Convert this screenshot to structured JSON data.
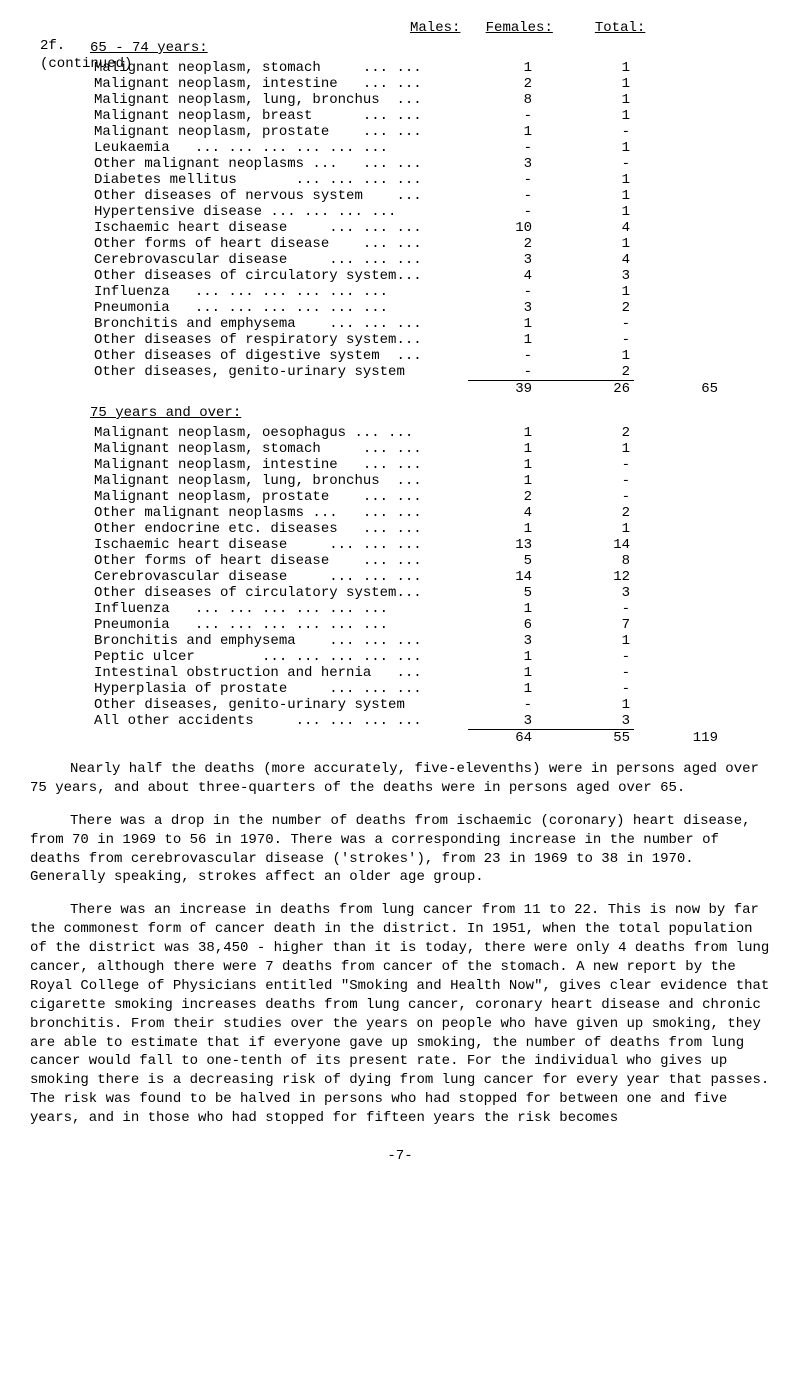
{
  "header": {
    "males": "Males:",
    "females": "Females:",
    "total": "Total:"
  },
  "margin": {
    "line1": "2f.",
    "line2": "(continued)"
  },
  "section1": {
    "title": "65 - 74 years:",
    "rows": [
      {
        "label": "Malignant neoplasm, stomach     ... ...",
        "m": "1",
        "f": "1"
      },
      {
        "label": "Malignant neoplasm, intestine   ... ...",
        "m": "2",
        "f": "1"
      },
      {
        "label": "Malignant neoplasm, lung, bronchus  ...",
        "m": "8",
        "f": "1"
      },
      {
        "label": "Malignant neoplasm, breast      ... ...",
        "m": "-",
        "f": "1"
      },
      {
        "label": "Malignant neoplasm, prostate    ... ...",
        "m": "1",
        "f": "-"
      },
      {
        "label": "Leukaemia   ... ... ... ... ... ...",
        "m": "-",
        "f": "1"
      },
      {
        "label": "Other malignant neoplasms ...   ... ...",
        "m": "3",
        "f": "-"
      },
      {
        "label": "Diabetes mellitus       ... ... ... ...",
        "m": "-",
        "f": "1"
      },
      {
        "label": "Other diseases of nervous system    ...",
        "m": "-",
        "f": "1"
      },
      {
        "label": "Hypertensive disease ... ... ... ...",
        "m": "-",
        "f": "1"
      },
      {
        "label": "Ischaemic heart disease     ... ... ...",
        "m": "10",
        "f": "4"
      },
      {
        "label": "Other forms of heart disease    ... ...",
        "m": "2",
        "f": "1"
      },
      {
        "label": "Cerebrovascular disease     ... ... ...",
        "m": "3",
        "f": "4"
      },
      {
        "label": "Other diseases of circulatory system...",
        "m": "4",
        "f": "3"
      },
      {
        "label": "Influenza   ... ... ... ... ... ...",
        "m": "-",
        "f": "1"
      },
      {
        "label": "Pneumonia   ... ... ... ... ... ...",
        "m": "3",
        "f": "2"
      },
      {
        "label": "Bronchitis and emphysema    ... ... ...",
        "m": "1",
        "f": "-"
      },
      {
        "label": "Other diseases of respiratory system...",
        "m": "1",
        "f": "-"
      },
      {
        "label": "Other diseases of digestive system  ...",
        "m": "-",
        "f": "1"
      },
      {
        "label": "Other diseases, genito-urinary system",
        "m": "-",
        "f": "2"
      }
    ],
    "totals": {
      "m": "39",
      "f": "26",
      "t": "65"
    }
  },
  "section2": {
    "title": "75 years and over:",
    "rows": [
      {
        "label": "Malignant neoplasm, oesophagus ... ...",
        "m": "1",
        "f": "2"
      },
      {
        "label": "Malignant neoplasm, stomach     ... ...",
        "m": "1",
        "f": "1"
      },
      {
        "label": "Malignant neoplasm, intestine   ... ...",
        "m": "1",
        "f": "-"
      },
      {
        "label": "Malignant neoplasm, lung, bronchus  ...",
        "m": "1",
        "f": "-"
      },
      {
        "label": "Malignant neoplasm, prostate    ... ...",
        "m": "2",
        "f": "-"
      },
      {
        "label": "Other malignant neoplasms ...   ... ...",
        "m": "4",
        "f": "2"
      },
      {
        "label": "Other endocrine etc. diseases   ... ...",
        "m": "1",
        "f": "1"
      },
      {
        "label": "Ischaemic heart disease     ... ... ...",
        "m": "13",
        "f": "14"
      },
      {
        "label": "Other forms of heart disease    ... ...",
        "m": "5",
        "f": "8"
      },
      {
        "label": "Cerebrovascular disease     ... ... ...",
        "m": "14",
        "f": "12"
      },
      {
        "label": "Other diseases of circulatory system...",
        "m": "5",
        "f": "3"
      },
      {
        "label": "Influenza   ... ... ... ... ... ...",
        "m": "1",
        "f": "-"
      },
      {
        "label": "Pneumonia   ... ... ... ... ... ...",
        "m": "6",
        "f": "7"
      },
      {
        "label": "Bronchitis and emphysema    ... ... ...",
        "m": "3",
        "f": "1"
      },
      {
        "label": "Peptic ulcer        ... ... ... ... ...",
        "m": "1",
        "f": "-"
      },
      {
        "label": "Intestinal obstruction and hernia   ...",
        "m": "1",
        "f": "-"
      },
      {
        "label": "Hyperplasia of prostate     ... ... ...",
        "m": "1",
        "f": "-"
      },
      {
        "label": "Other diseases, genito-urinary system",
        "m": "-",
        "f": "1"
      },
      {
        "label": "All other accidents     ... ... ... ...",
        "m": "3",
        "f": "3"
      }
    ],
    "totals": {
      "m": "64",
      "f": "55",
      "t": "119"
    }
  },
  "paragraphs": {
    "p1": "Nearly half the deaths (more accurately, five-elevenths) were in persons aged over 75 years, and about three-quarters of the deaths were in persons aged over 65.",
    "p2": "There was a drop in the number of deaths from ischaemic (coronary) heart disease, from 70 in 1969 to 56 in 1970. There was a corresponding increase in the number of deaths from cerebrovascular disease ('strokes'), from 23 in 1969 to 38 in 1970. Generally speaking, strokes affect an older age group.",
    "p3": "There was an increase in deaths from lung cancer from 11 to 22. This is now by far the commonest form of cancer death in the district. In 1951, when the total population of the district was 38,450 - higher than it is today, there were only 4 deaths from lung cancer, although there were 7 deaths from cancer of the stomach. A new report by the Royal College of Physicians entitled \"Smoking and Health Now\", gives clear evidence that cigarette smoking increases deaths from lung cancer, coronary heart disease and chronic bronchitis. From their studies over the years on people who have given up smoking, they are able to estimate that if everyone gave up smoking, the number of deaths from lung cancer would fall to one-tenth of its present rate. For the individual who gives up smoking there is a decreasing risk of dying from lung cancer for every year that passes. The risk was found to be halved in persons who had stopped for between one and five years, and in those who had stopped for fifteen years the risk becomes"
  },
  "page": "-7-"
}
